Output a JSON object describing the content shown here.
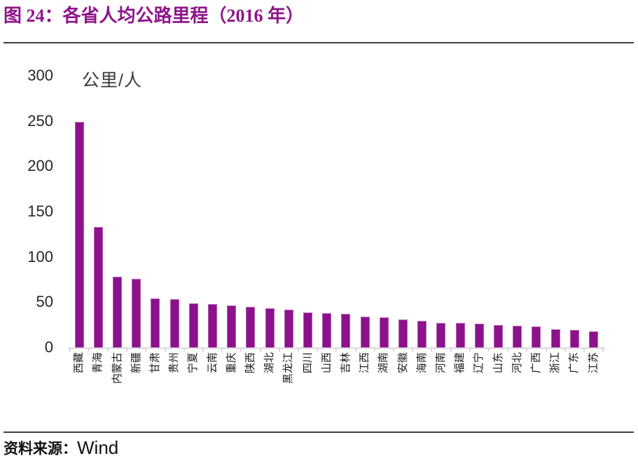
{
  "title": "图 24：各省人均公路里程（2016 年）",
  "source_label": "资料来源：",
  "source_value": "Wind",
  "colors": {
    "accent_purple": "#8E158B",
    "bar_fill": "#8C128C",
    "bar_edge": "#B55CB2",
    "axis_line": "#D9D9D9",
    "text_dark": "#262626",
    "divider": "#3F3F3F"
  },
  "chart_data": {
    "type": "bar",
    "title": "各省人均公路里程（2016 年）",
    "unit_label": "公里/人",
    "xlabel": "",
    "ylabel": "公里/人",
    "ylim": [
      0,
      300
    ],
    "yticks": [
      300,
      250,
      200,
      150,
      100,
      50,
      0
    ],
    "grid": false,
    "legend": "none",
    "bar_color": "#8C128C",
    "categories": [
      "西藏",
      "青海",
      "内蒙古",
      "新疆",
      "甘肃",
      "贵州",
      "宁夏",
      "云南",
      "重庆",
      "陕西",
      "湖北",
      "黑龙江",
      "四川",
      "山西",
      "吉林",
      "江西",
      "湖南",
      "安徽",
      "海南",
      "河南",
      "福建",
      "辽宁",
      "山东",
      "河北",
      "广西",
      "浙江",
      "广东",
      "江苏"
    ],
    "values": [
      249,
      133,
      78,
      76,
      54,
      53,
      49,
      48,
      46,
      45,
      43,
      42,
      39,
      38,
      37,
      34,
      33,
      31,
      29,
      27,
      27,
      26,
      25,
      24,
      23,
      20,
      19,
      18
    ]
  }
}
